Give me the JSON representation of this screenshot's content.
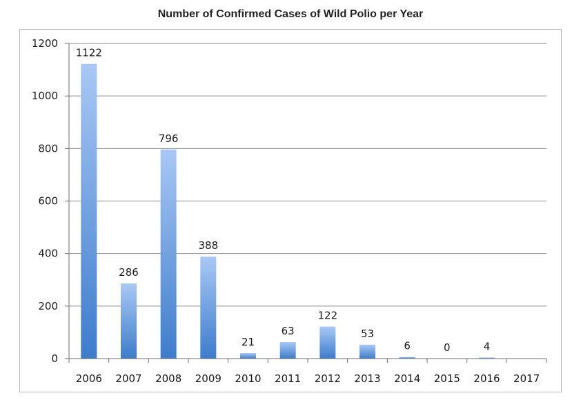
{
  "chart_data": {
    "type": "bar",
    "title": "Number of Confirmed Cases of Wild Polio per Year",
    "categories": [
      "2006",
      "2007",
      "2008",
      "2009",
      "2010",
      "2011",
      "2012",
      "2013",
      "2014",
      "2015",
      "2016",
      "2017"
    ],
    "values": [
      1122,
      286,
      796,
      388,
      21,
      63,
      122,
      53,
      6,
      0,
      4,
      null
    ],
    "data_labels": [
      "1122",
      "286",
      "796",
      "388",
      "21",
      "63",
      "122",
      "53",
      "6",
      "0",
      "4",
      ""
    ],
    "xlabel": "",
    "ylabel": "",
    "ylim": [
      0,
      1200
    ],
    "yticks": [
      0,
      200,
      400,
      600,
      800,
      1000,
      1200
    ],
    "grid": true,
    "legend": "none",
    "colors": {
      "bar_top": "#a9c8f5",
      "bar_bottom": "#3e7ccb",
      "grid": "#8c8c8c",
      "axis": "#6e6e6e"
    }
  }
}
